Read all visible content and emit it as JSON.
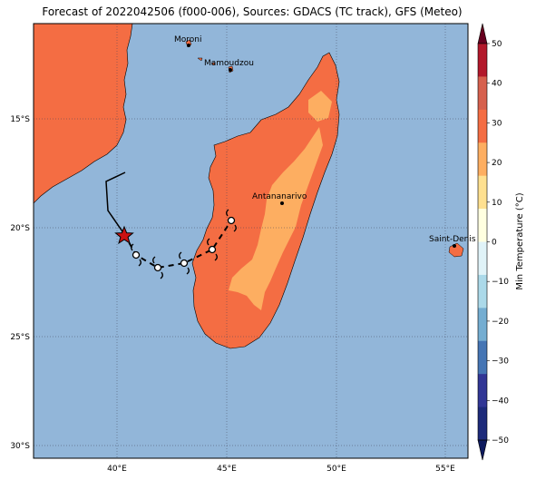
{
  "title": "Forecast of 2022042506 (f000-006), Sources: GDACS (TC track), GFS (Meteo)",
  "colors": {
    "ocean": "#92b6d9",
    "land_warm": "#f46d43",
    "land_cool": "#fdae61",
    "grid": "#44445a",
    "track": "#000000",
    "storm_marker": "#cc1111"
  },
  "map": {
    "lon_ticks": [
      "40°E",
      "45°E",
      "50°E",
      "55°E"
    ],
    "lat_ticks": [
      "15°S",
      "20°S",
      "25°S",
      "30°S"
    ]
  },
  "cities": [
    {
      "name": "Moroni"
    },
    {
      "name": "Mamoudzou"
    },
    {
      "name": "Antananarivo"
    },
    {
      "name": "Saint-Denis"
    }
  ],
  "colorbar": {
    "label": "Min Temperature (°C)",
    "ticks": [
      "50",
      "40",
      "30",
      "20",
      "10",
      "0",
      "−10",
      "−20",
      "−30",
      "−40",
      "−50"
    ],
    "colors": [
      "#67001f",
      "#b2182b",
      "#d6604d",
      "#f46d43",
      "#fdae61",
      "#fee090",
      "#ffffe0",
      "#e0f3f8",
      "#abd9e9",
      "#74add1",
      "#4575b4",
      "#313695",
      "#1d2a7a",
      "#0e1a5e"
    ]
  },
  "track_icons": [
    "storm-symbol",
    "star-icon"
  ]
}
